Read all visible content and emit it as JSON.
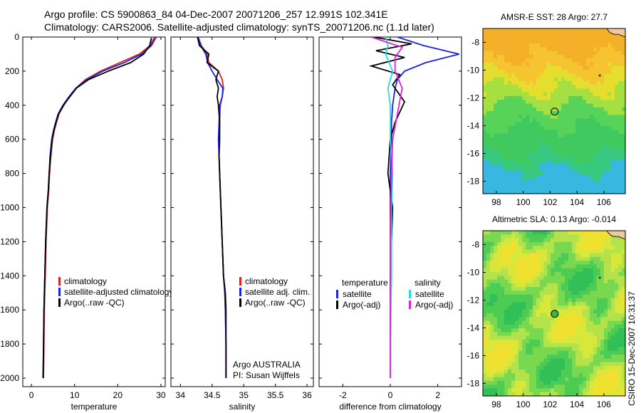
{
  "header": {
    "line1": "Argo profile: CS 5900863_84 04-Dec-2007 20071206_257 12.991S 102.341E",
    "line2": "Climatology: CARS2006. Satellite-adjusted climatology: synTS_20071206.nc (1.1d later)"
  },
  "footer": {
    "stamp": "CSIRO 15-Dec-2007 10:31:37"
  },
  "colors": {
    "red": "#e02020",
    "blue": "#1a22e0",
    "black": "#000000",
    "magenta": "#e020e0",
    "cyan": "#20e0e8"
  },
  "chart_data": [
    {
      "type": "line",
      "name": "temperature",
      "xlabel": "temperature",
      "ylabel": "",
      "xlim": [
        -2,
        31
      ],
      "ylim": [
        2050,
        0
      ],
      "xticks": [
        0,
        10,
        20,
        30
      ],
      "yticks": [
        0,
        200,
        400,
        600,
        800,
        1000,
        1200,
        1400,
        1600,
        1800,
        2000
      ],
      "legend": [
        "climatology",
        "satellite-adjusted climatology",
        "Argo(..raw -QC)"
      ],
      "series": [
        {
          "name": "climatology",
          "color": "red",
          "x": [
            28.5,
            27.5,
            25,
            20.5,
            16,
            12.5,
            10.3,
            8.8,
            7.5,
            6.4,
            5.8,
            5.3,
            4.9,
            4.5,
            4.2,
            4.0,
            3.7,
            3.4,
            3.2,
            3.0,
            2.9,
            2.8
          ],
          "y": [
            0,
            50,
            100,
            150,
            200,
            250,
            300,
            350,
            400,
            450,
            500,
            550,
            600,
            700,
            800,
            900,
            1000,
            1200,
            1400,
            1600,
            1800,
            2000
          ]
        },
        {
          "name": "satellite-adjusted climatology",
          "color": "blue",
          "x": [
            28.9,
            27.8,
            25.5,
            21.5,
            16.5,
            12.8,
            10.3,
            8.7,
            7.3,
            6.2,
            5.6,
            5.1,
            4.7,
            4.3,
            4.1,
            3.9,
            3.6,
            3.3,
            3.1,
            2.9,
            2.8,
            2.7
          ],
          "y": [
            0,
            50,
            100,
            150,
            200,
            250,
            300,
            350,
            400,
            450,
            500,
            550,
            600,
            700,
            800,
            900,
            1000,
            1200,
            1400,
            1600,
            1800,
            2000
          ]
        },
        {
          "name": "Argo(..raw -QC)",
          "color": "black",
          "x": [
            27.8,
            27.4,
            26.0,
            23.0,
            17.8,
            13.2,
            10.4,
            8.9,
            7.4,
            6.3,
            5.7,
            5.2,
            4.8,
            4.4,
            4.1,
            3.9,
            3.6,
            3.3,
            3.1,
            2.9,
            2.8,
            2.7
          ],
          "y": [
            5,
            50,
            100,
            150,
            200,
            250,
            300,
            350,
            400,
            450,
            500,
            550,
            600,
            700,
            800,
            900,
            1000,
            1200,
            1400,
            1600,
            1800,
            2000
          ]
        }
      ]
    },
    {
      "type": "line",
      "name": "salinity",
      "xlabel": "salinity",
      "ylabel": "",
      "xlim": [
        33.85,
        36.1
      ],
      "ylim": [
        2050,
        0
      ],
      "xticks": [
        34,
        34.5,
        35,
        35.5,
        36
      ],
      "yticks": [
        0,
        200,
        400,
        600,
        800,
        1000,
        1200,
        1400,
        1600,
        1800,
        2000
      ],
      "legend": [
        "climatology",
        "satellite adj. clim.",
        "Argo(..raw -QC)"
      ],
      "annotations": [
        "Argo AUSTRALIA",
        "PI: Susan Wijffels"
      ],
      "series": [
        {
          "name": "climatology",
          "color": "red",
          "x": [
            34.28,
            34.33,
            34.42,
            34.45,
            34.6,
            34.66,
            34.68,
            34.66,
            34.63,
            34.62,
            34.61,
            34.61,
            34.62,
            34.63,
            34.64,
            34.66,
            34.68,
            34.7,
            34.71,
            34.72,
            34.72
          ],
          "y": [
            0,
            50,
            100,
            150,
            200,
            250,
            300,
            350,
            400,
            500,
            600,
            700,
            800,
            900,
            1000,
            1200,
            1400,
            1500,
            1600,
            1800,
            2000
          ]
        },
        {
          "name": "satellite adj. clim.",
          "color": "blue",
          "x": [
            34.28,
            34.32,
            34.4,
            34.43,
            34.5,
            34.58,
            34.67,
            34.66,
            34.62,
            34.61,
            34.6,
            34.61,
            34.62,
            34.63,
            34.64,
            34.66,
            34.68,
            34.7,
            34.71,
            34.72,
            34.72
          ],
          "y": [
            0,
            50,
            100,
            150,
            200,
            250,
            300,
            350,
            400,
            500,
            600,
            700,
            800,
            900,
            1000,
            1200,
            1400,
            1500,
            1600,
            1800,
            2000
          ]
        },
        {
          "name": "Argo(..raw -QC)",
          "color": "black",
          "x": [
            34.27,
            34.3,
            34.45,
            34.42,
            34.6,
            34.56,
            34.6,
            34.58,
            34.6,
            34.62,
            34.62,
            34.61,
            34.62,
            34.63,
            34.64,
            34.66,
            34.68,
            34.71,
            34.72,
            34.72,
            34.72
          ],
          "y": [
            0,
            50,
            100,
            150,
            200,
            250,
            300,
            350,
            400,
            500,
            600,
            700,
            800,
            900,
            1000,
            1200,
            1400,
            1500,
            1600,
            1800,
            2000
          ]
        }
      ]
    },
    {
      "type": "line",
      "name": "difference",
      "xlabel": "difference from climatology",
      "ylabel": "",
      "xlim": [
        -3.0,
        3.0
      ],
      "ylim": [
        2050,
        0
      ],
      "xticks": [
        -2,
        0,
        2
      ],
      "yticks": [
        0,
        200,
        400,
        600,
        800,
        1000,
        1200,
        1400,
        1600,
        1800,
        2000
      ],
      "legend_headers": [
        "temperature",
        "salinity"
      ],
      "legend": [
        "satellite",
        "Argo(-adj)",
        "satellite",
        "Argo(-adj)"
      ],
      "series": [
        {
          "name": "temperature satellite",
          "color": "blue",
          "x": [
            0.3,
            1.4,
            2.9,
            1.5,
            0.6,
            0.3,
            0.2,
            0.1,
            0.05,
            0.05,
            0.0,
            0.0,
            0.0,
            0.0
          ],
          "y": [
            0,
            50,
            100,
            150,
            200,
            250,
            300,
            400,
            500,
            600,
            800,
            1200,
            1600,
            2000
          ]
        },
        {
          "name": "temperature Argo(-adj)",
          "color": "black",
          "x": [
            -0.7,
            0.9,
            -0.6,
            0.6,
            -0.8,
            0.4,
            0.1,
            0.6,
            0.2,
            0.0,
            -0.1,
            0.1,
            0.0,
            0.0,
            0.0
          ],
          "y": [
            0,
            40,
            80,
            120,
            170,
            220,
            280,
            380,
            500,
            600,
            800,
            1000,
            1400,
            1800,
            2000
          ]
        },
        {
          "name": "salinity satellite",
          "color": "cyan",
          "x": [
            -0.2,
            -0.1,
            -0.2,
            0.1,
            -0.1,
            0.0,
            0.0,
            0.1,
            0.05,
            0.05,
            0.0,
            0.0
          ],
          "y": [
            0,
            50,
            100,
            200,
            300,
            400,
            600,
            800,
            1000,
            1400,
            1800,
            2000
          ]
        },
        {
          "name": "salinity Argo(-adj)",
          "color": "magenta",
          "x": [
            -0.8,
            0.5,
            0.2,
            0.2,
            0.5,
            0.3,
            0.1,
            0.05,
            0.0,
            0.0,
            0.0
          ],
          "y": [
            0,
            60,
            120,
            200,
            300,
            450,
            600,
            800,
            1200,
            1600,
            2000
          ]
        }
      ]
    },
    {
      "type": "heatmap",
      "name": "sst-map",
      "title": "AMSR-E SST: 28 Argo: 27.7",
      "xlim": [
        97,
        107.6
      ],
      "ylim": [
        -18.9,
        -7
      ],
      "xticks": [
        98,
        100,
        102,
        104,
        106
      ],
      "yticks": [
        -8,
        -10,
        -12,
        -14,
        -16,
        -18
      ],
      "markers": [
        {
          "kind": "argo-profile",
          "lon": 102.34,
          "lat": -12.99
        },
        {
          "kind": "star",
          "lon": 105.7,
          "lat": -10.45
        }
      ]
    },
    {
      "type": "heatmap",
      "name": "sla-map",
      "title": "Altimetric SLA: 0.13 Argo: -0.014",
      "xlim": [
        97,
        107.6
      ],
      "ylim": [
        -18.9,
        -7
      ],
      "xticks": [
        98,
        100,
        102,
        104,
        106
      ],
      "yticks": [
        -8,
        -10,
        -12,
        -14,
        -16,
        -18
      ],
      "markers": [
        {
          "kind": "argo-profile",
          "lon": 102.34,
          "lat": -12.99
        },
        {
          "kind": "star",
          "lon": 105.7,
          "lat": -10.45
        }
      ]
    }
  ]
}
